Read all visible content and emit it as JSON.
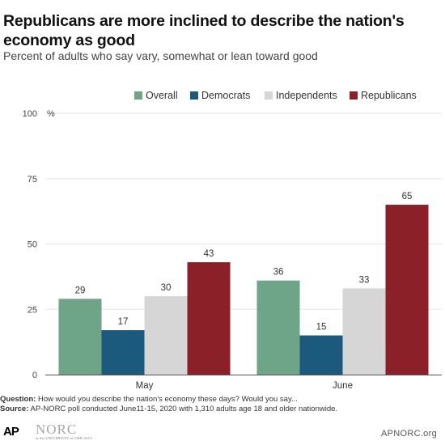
{
  "title": "Republicans are more inclined to describe the nation's economy as good",
  "subtitle": "Percent of adults who say vary, somewhat or lean toward good",
  "colors": {
    "Overall": "#6ea588",
    "Democrats": "#1b5a7c",
    "Independents": "#d6d6d6",
    "Republicans": "#8b2028",
    "axis": "#555555",
    "grid": "#e6e6e6"
  },
  "chart_data": {
    "type": "bar",
    "categories": [
      "May",
      "June"
    ],
    "series": [
      {
        "name": "Overall",
        "values": [
          29,
          36
        ]
      },
      {
        "name": "Democrats",
        "values": [
          17,
          15
        ]
      },
      {
        "name": "Independents",
        "values": [
          30,
          33
        ]
      },
      {
        "name": "Republicans",
        "values": [
          43,
          65
        ]
      }
    ],
    "yunit": "%",
    "ylim": [
      0,
      100
    ],
    "yticks": [
      0,
      25,
      50,
      75,
      100
    ],
    "grid": true,
    "legend": "top-center",
    "data_labels": true
  },
  "footnotes": {
    "question_label": "Question:",
    "question_text": " How would you describe the nation's economy these days? Would you say...",
    "source_label": "Source:",
    "source_text": " AP-NORC poll conducted June11-15, 2020 with 1,310 adults age 18 and older nationwide."
  },
  "footer": {
    "ap_logo_text": "AP",
    "norc_name": "NORC",
    "norc_affiliation": "at the UNIVERSITY of CHICAGO",
    "site": "APNORC.org"
  }
}
